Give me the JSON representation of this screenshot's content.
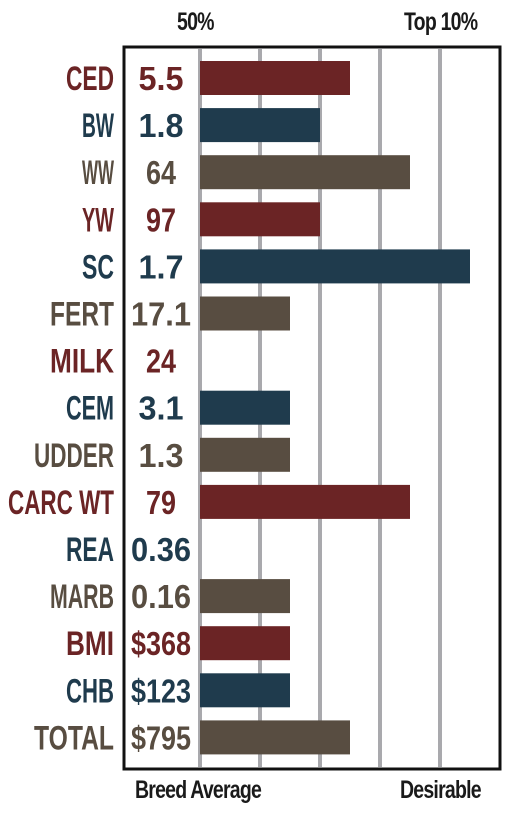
{
  "chart_data": {
    "type": "bar",
    "orientation": "horizontal",
    "top_labels": [
      "50%",
      "Top 10%"
    ],
    "bottom_labels": [
      "Breed Average",
      "Desirable"
    ],
    "grid": true,
    "scale_max": 9,
    "colors": {
      "red": "#6b2425",
      "blue": "#1f3b4d",
      "brown": "#584d41"
    },
    "rows": [
      {
        "trait": "CED",
        "value": "5.5",
        "bar": 5,
        "color": "red"
      },
      {
        "trait": "BW",
        "value": "1.8",
        "bar": 4,
        "color": "blue"
      },
      {
        "trait": "WW",
        "value": "64",
        "bar": 7,
        "color": "brown"
      },
      {
        "trait": "YW",
        "value": "97",
        "bar": 4,
        "color": "red"
      },
      {
        "trait": "SC",
        "value": "1.7",
        "bar": 9,
        "color": "blue"
      },
      {
        "trait": "FERT",
        "value": "17.1",
        "bar": 3,
        "color": "brown"
      },
      {
        "trait": "MILK",
        "value": "24",
        "bar": 0,
        "color": "red"
      },
      {
        "trait": "CEM",
        "value": "3.1",
        "bar": 3,
        "color": "blue"
      },
      {
        "trait": "UDDER",
        "value": "1.3",
        "bar": 3,
        "color": "brown"
      },
      {
        "trait": "CARC WT",
        "value": "79",
        "bar": 7,
        "color": "red"
      },
      {
        "trait": "REA",
        "value": "0.36",
        "bar": 0,
        "color": "blue"
      },
      {
        "trait": "MARB",
        "value": "0.16",
        "bar": 3,
        "color": "brown"
      },
      {
        "trait": "BMI",
        "value": "$368",
        "bar": 3,
        "color": "red"
      },
      {
        "trait": "CHB",
        "value": "$123",
        "bar": 3,
        "color": "blue"
      },
      {
        "trait": "TOTAL",
        "value": "$795",
        "bar": 5,
        "color": "brown"
      }
    ]
  }
}
